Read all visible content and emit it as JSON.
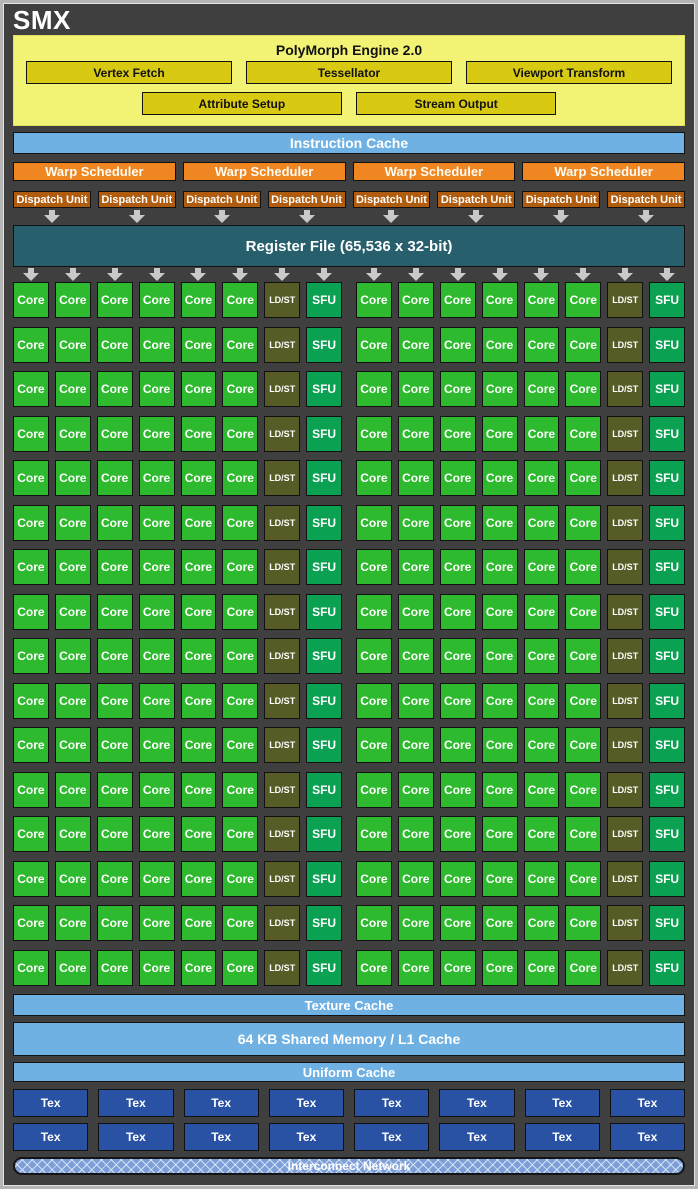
{
  "title": "SMX",
  "polymorph": {
    "title": "PolyMorph Engine 2.0",
    "row1": [
      "Vertex Fetch",
      "Tessellator",
      "Viewport Transform"
    ],
    "row2": [
      "Attribute Setup",
      "Stream Output"
    ]
  },
  "instruction_cache": "Instruction Cache",
  "warp_schedulers": [
    "Warp Scheduler",
    "Warp Scheduler",
    "Warp Scheduler",
    "Warp Scheduler"
  ],
  "dispatch_units": [
    "Dispatch Unit",
    "Dispatch Unit",
    "Dispatch Unit",
    "Dispatch Unit",
    "Dispatch Unit",
    "Dispatch Unit",
    "Dispatch Unit",
    "Dispatch Unit"
  ],
  "register_file": "Register File (65,536 x 32-bit)",
  "core_grid": {
    "rows": 16,
    "row_pattern": [
      "Core",
      "Core",
      "Core",
      "Core",
      "Core",
      "Core",
      "LD/ST",
      "SFU",
      "Core",
      "Core",
      "Core",
      "Core",
      "Core",
      "Core",
      "LD/ST",
      "SFU"
    ],
    "mid_gap_index": 8
  },
  "texture_cache": "Texture Cache",
  "shared_memory": "64 KB Shared Memory / L1 Cache",
  "uniform_cache": "Uniform Cache",
  "tex_units": {
    "rows": 2,
    "cols": 8,
    "label": "Tex"
  },
  "interconnect": "Interconnect Network",
  "colors": {
    "bg": "#3f3f3f",
    "frame_border": "#b5b5b5",
    "pm_bg": "#f2f275",
    "pm_box": "#d8c913",
    "cache_blue": "#6fb1e3",
    "warp_orange": "#ef8621",
    "dispatch_orange": "#b05c0f",
    "register_teal": "#275f6d",
    "core_green": "#2eba2e",
    "ldst_olive": "#575c26",
    "sfu_green": "#0ba152",
    "tex_blue": "#2a52a4",
    "interconnect_blue": "#7d9ed6",
    "arrow_gray": "#c9c9c9"
  }
}
